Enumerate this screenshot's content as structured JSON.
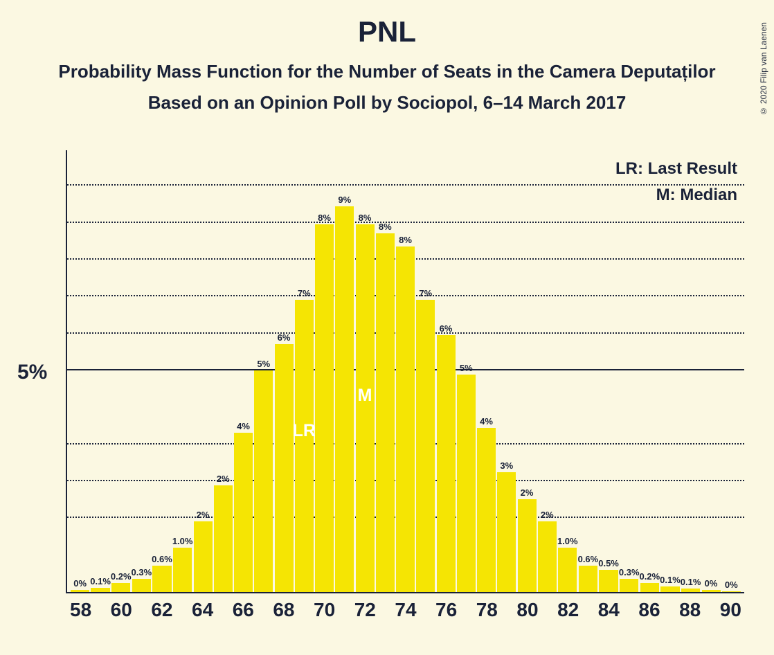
{
  "copyright": "© 2020 Filip van Laenen",
  "title": "PNL",
  "subtitle1": "Probability Mass Function for the Number of Seats in the Camera Deputaților",
  "subtitle2": "Based on an Opinion Poll by Sociopol, 6–14 March 2017",
  "legend": {
    "lr": "LR: Last Result",
    "m": "M: Median"
  },
  "chart": {
    "type": "bar",
    "bar_color": "#f5e503",
    "background_color": "#fbf8e2",
    "text_color": "#1a2238",
    "marker_color": "#ffffff",
    "y_axis": {
      "max": 10,
      "tick_value": 5,
      "tick_label": "5%",
      "gridlines": [
        1.67,
        2.5,
        3.33,
        5,
        5.83,
        6.67,
        7.5,
        8.33,
        9.17
      ]
    },
    "x_labels": [
      "58",
      "",
      "60",
      "",
      "62",
      "",
      "64",
      "",
      "66",
      "",
      "68",
      "",
      "70",
      "",
      "72",
      "",
      "74",
      "",
      "76",
      "",
      "78",
      "",
      "80",
      "",
      "82",
      "",
      "84",
      "",
      "86",
      "",
      "88",
      "",
      "90"
    ],
    "bars": [
      {
        "x": 58,
        "label": "0%",
        "value": 0.05
      },
      {
        "x": 59,
        "label": "0.1%",
        "value": 0.1
      },
      {
        "x": 60,
        "label": "0.2%",
        "value": 0.2
      },
      {
        "x": 61,
        "label": "0.3%",
        "value": 0.3
      },
      {
        "x": 62,
        "label": "0.6%",
        "value": 0.6
      },
      {
        "x": 63,
        "label": "1.0%",
        "value": 1.0
      },
      {
        "x": 64,
        "label": "2%",
        "value": 1.6
      },
      {
        "x": 65,
        "label": "2%",
        "value": 2.4
      },
      {
        "x": 66,
        "label": "4%",
        "value": 3.6
      },
      {
        "x": 67,
        "label": "5%",
        "value": 5.0
      },
      {
        "x": 68,
        "label": "6%",
        "value": 5.6
      },
      {
        "x": 69,
        "label": "7%",
        "value": 6.6,
        "marker": "LR",
        "marker_pos": 3.4
      },
      {
        "x": 70,
        "label": "8%",
        "value": 8.3
      },
      {
        "x": 71,
        "label": "9%",
        "value": 8.7
      },
      {
        "x": 72,
        "label": "8%",
        "value": 8.3,
        "marker": "M",
        "marker_pos": 4.2
      },
      {
        "x": 73,
        "label": "8%",
        "value": 8.1
      },
      {
        "x": 74,
        "label": "8%",
        "value": 7.8
      },
      {
        "x": 75,
        "label": "7%",
        "value": 6.6
      },
      {
        "x": 76,
        "label": "6%",
        "value": 5.8
      },
      {
        "x": 77,
        "label": "5%",
        "value": 4.9
      },
      {
        "x": 78,
        "label": "4%",
        "value": 3.7
      },
      {
        "x": 79,
        "label": "3%",
        "value": 2.7
      },
      {
        "x": 80,
        "label": "2%",
        "value": 2.1
      },
      {
        "x": 81,
        "label": "2%",
        "value": 1.6
      },
      {
        "x": 82,
        "label": "1.0%",
        "value": 1.0
      },
      {
        "x": 83,
        "label": "0.6%",
        "value": 0.6
      },
      {
        "x": 84,
        "label": "0.5%",
        "value": 0.5
      },
      {
        "x": 85,
        "label": "0.3%",
        "value": 0.3
      },
      {
        "x": 86,
        "label": "0.2%",
        "value": 0.2
      },
      {
        "x": 87,
        "label": "0.1%",
        "value": 0.12
      },
      {
        "x": 88,
        "label": "0.1%",
        "value": 0.08
      },
      {
        "x": 89,
        "label": "0%",
        "value": 0.04
      },
      {
        "x": 90,
        "label": "0%",
        "value": 0.02
      }
    ]
  }
}
